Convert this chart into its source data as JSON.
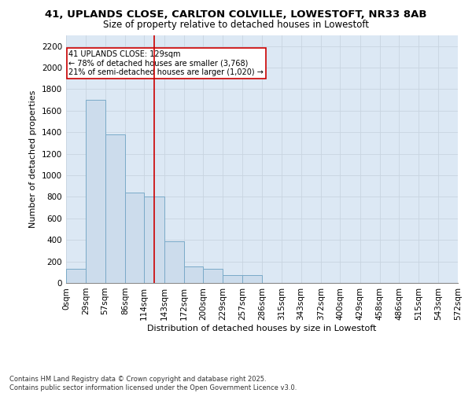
{
  "title1": "41, UPLANDS CLOSE, CARLTON COLVILLE, LOWESTOFT, NR33 8AB",
  "title2": "Size of property relative to detached houses in Lowestoft",
  "xlabel": "Distribution of detached houses by size in Lowestoft",
  "ylabel": "Number of detached properties",
  "bar_edges": [
    0,
    29,
    57,
    86,
    114,
    143,
    172,
    200,
    229,
    257,
    286,
    315,
    343,
    372,
    400,
    429,
    458,
    486,
    515,
    543,
    572
  ],
  "bar_heights": [
    130,
    1700,
    1380,
    840,
    800,
    390,
    155,
    130,
    75,
    75,
    0,
    0,
    0,
    0,
    0,
    0,
    0,
    0,
    0,
    0
  ],
  "bar_color": "#ccdcec",
  "bar_edge_color": "#7aaac8",
  "grid_color": "#c8d4e0",
  "background_color": "#dce8f4",
  "vline_x": 129,
  "vline_color": "#cc0000",
  "annotation_text": "41 UPLANDS CLOSE: 129sqm\n← 78% of detached houses are smaller (3,768)\n21% of semi-detached houses are larger (1,020) →",
  "annotation_box_color": "#cc0000",
  "ylim": [
    0,
    2300
  ],
  "yticks": [
    0,
    200,
    400,
    600,
    800,
    1000,
    1200,
    1400,
    1600,
    1800,
    2000,
    2200
  ],
  "xtick_labels": [
    "0sqm",
    "29sqm",
    "57sqm",
    "86sqm",
    "114sqm",
    "143sqm",
    "172sqm",
    "200sqm",
    "229sqm",
    "257sqm",
    "286sqm",
    "315sqm",
    "343sqm",
    "372sqm",
    "400sqm",
    "429sqm",
    "458sqm",
    "486sqm",
    "515sqm",
    "543sqm",
    "572sqm"
  ],
  "footer1": "Contains HM Land Registry data © Crown copyright and database right 2025.",
  "footer2": "Contains public sector information licensed under the Open Government Licence v3.0.",
  "title_fontsize": 9.5,
  "subtitle_fontsize": 8.5,
  "axis_label_fontsize": 8,
  "tick_fontsize": 7.5,
  "footer_fontsize": 6
}
